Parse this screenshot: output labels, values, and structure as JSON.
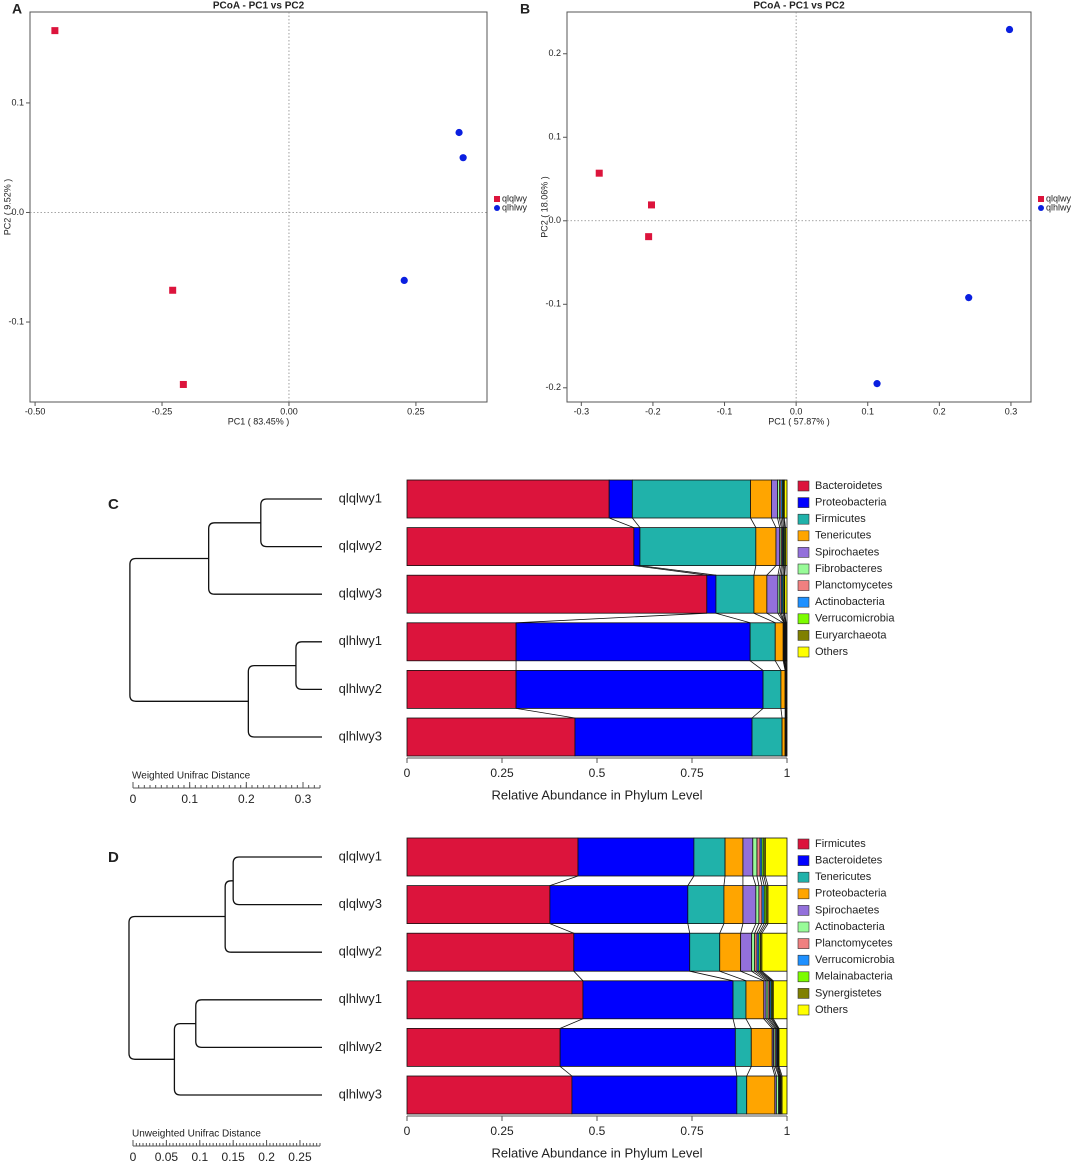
{
  "chart_data": [
    {
      "type": "scatter",
      "panel": "A",
      "title": "PCoA - PC1 vs PC2",
      "xlabel": "PC1 ( 83.45% )",
      "ylabel": "PC2 ( 9.52% )",
      "xlim": [
        -0.51,
        0.39
      ],
      "ylim": [
        -0.173,
        0.183
      ],
      "xticks": [
        {
          "value": -0.5,
          "label": "-0.50"
        },
        {
          "value": -0.25,
          "label": "-0.25"
        },
        {
          "value": 0,
          "label": "0.00"
        },
        {
          "value": 0.25,
          "label": "0.25"
        }
      ],
      "yticks": [
        0.1,
        {
          "value": 0,
          "label": "0.0"
        },
        -0.1
      ],
      "series": [
        {
          "name": "qlqlwy",
          "color": "#dc143c",
          "marker": "square",
          "x": [
            -0.461,
            -0.229,
            -0.208
          ],
          "values": [
            0.166,
            -0.071,
            -0.157
          ]
        },
        {
          "name": "qlhlwy",
          "color": "#0a1fe0",
          "marker": "circle",
          "x": [
            0.335,
            0.343,
            0.227
          ],
          "values": [
            0.073,
            0.05,
            -0.062
          ]
        }
      ]
    },
    {
      "type": "scatter",
      "panel": "B",
      "title": "PCoA - PC1 vs PC2",
      "xlabel": "PC1 ( 57.87% )",
      "ylabel": "PC2 ( 18.06% )",
      "xlim": [
        -0.32,
        0.328
      ],
      "ylim": [
        -0.217,
        0.25
      ],
      "xticks": [
        -0.3,
        -0.2,
        -0.1,
        {
          "value": 0,
          "label": "0.0"
        },
        0.1,
        0.2,
        0.3
      ],
      "yticks": [
        0.2,
        0.1,
        {
          "value": 0,
          "label": "0.0"
        },
        -0.1,
        -0.2
      ],
      "series": [
        {
          "name": "qlqlwy",
          "color": "#dc143c",
          "marker": "square",
          "x": [
            -0.275,
            -0.202,
            -0.206
          ],
          "values": [
            0.057,
            0.019,
            -0.019
          ]
        },
        {
          "name": "qlhlwy",
          "color": "#0a1fe0",
          "marker": "circle",
          "x": [
            0.298,
            0.241,
            0.113
          ],
          "values": [
            0.229,
            -0.092,
            -0.195
          ]
        }
      ]
    },
    {
      "type": "bar",
      "panel": "C",
      "orientation": "horizontal",
      "stacked": true,
      "xlabel": "Relative Abundance in Phylum Level",
      "xlim": [
        0,
        1
      ],
      "xticks": [
        0,
        0.25,
        0.5,
        0.75,
        1
      ],
      "categories": [
        "qlqlwy1",
        "qlqlwy2",
        "qlqlwy3",
        "qlhlwy1",
        "qlhlwy2",
        "qlhlwy3"
      ],
      "series": [
        {
          "name": "Bacteroidetes",
          "color": "#dc143c",
          "values": [
            0.532,
            0.597,
            0.789,
            0.287,
            0.287,
            0.442
          ]
        },
        {
          "name": "Proteobacteria",
          "color": "#0000ff",
          "values": [
            0.061,
            0.016,
            0.024,
            0.616,
            0.65,
            0.466
          ]
        },
        {
          "name": "Firmicutes",
          "color": "#20b2aa",
          "values": [
            0.311,
            0.305,
            0.1,
            0.066,
            0.047,
            0.079
          ]
        },
        {
          "name": "Tenericutes",
          "color": "#ffa500",
          "values": [
            0.055,
            0.053,
            0.034,
            0.021,
            0.011,
            0.008
          ]
        },
        {
          "name": "Spirochaetes",
          "color": "#9370db",
          "values": [
            0.016,
            0.01,
            0.029,
            0.002,
            0.001,
            0.001
          ]
        },
        {
          "name": "Fibrobacteres",
          "color": "#98fb98",
          "values": [
            0.005,
            0.004,
            0.005,
            0.001,
            0.0005,
            0.0005
          ]
        },
        {
          "name": "Planctomycetes",
          "color": "#f08080",
          "values": [
            0.004,
            0.003,
            0.004,
            0.001,
            0.0005,
            0.0005
          ]
        },
        {
          "name": "Actinobacteria",
          "color": "#1e90ff",
          "values": [
            0.004,
            0.003,
            0.004,
            0.002,
            0.001,
            0.001
          ]
        },
        {
          "name": "Verrucomicrobia",
          "color": "#7cfc00",
          "values": [
            0.003,
            0.003,
            0.003,
            0.001,
            0.0005,
            0.0005
          ]
        },
        {
          "name": "Euryarchaeota",
          "color": "#808000",
          "values": [
            0.002,
            0.002,
            0.002,
            0.001,
            0.0005,
            0.0005
          ]
        },
        {
          "name": "Others",
          "color": "#ffff00",
          "values": [
            0.007,
            0.004,
            0.006,
            0.002,
            0.001,
            0.001
          ]
        }
      ],
      "dendrogram": {
        "label": "Weighted Unifrac Distance",
        "xlim": [
          0,
          0.33
        ],
        "xticks": [
          0,
          0.1,
          0.2,
          0.3
        ],
        "merges": [
          [
            0,
            1,
            0.108
          ],
          [
            6,
            2,
            0.2
          ],
          [
            3,
            4,
            0.046
          ],
          [
            8,
            5,
            0.13
          ],
          [
            7,
            9,
            0.339
          ]
        ]
      }
    },
    {
      "type": "bar",
      "panel": "D",
      "orientation": "horizontal",
      "stacked": true,
      "xlabel": "Relative Abundance in Phylum Level",
      "xlim": [
        0,
        1
      ],
      "xticks": [
        0,
        0.25,
        0.5,
        0.75,
        1
      ],
      "categories": [
        "qlqlwy1",
        "qlqlwy3",
        "qlqlwy2",
        "qlhlwy1",
        "qlhlwy2",
        "qlhlwy3"
      ],
      "series": [
        {
          "name": "Firmicutes",
          "color": "#dc143c",
          "values": [
            0.45,
            0.376,
            0.439,
            0.463,
            0.403,
            0.434
          ]
        },
        {
          "name": "Bacteroidetes",
          "color": "#0000ff",
          "values": [
            0.305,
            0.363,
            0.305,
            0.395,
            0.461,
            0.434
          ]
        },
        {
          "name": "Tenericutes",
          "color": "#20b2aa",
          "values": [
            0.082,
            0.095,
            0.079,
            0.034,
            0.042,
            0.026
          ]
        },
        {
          "name": "Proteobacteria",
          "color": "#ffa500",
          "values": [
            0.047,
            0.05,
            0.055,
            0.047,
            0.055,
            0.074
          ]
        },
        {
          "name": "Spirochaetes",
          "color": "#9370db",
          "values": [
            0.026,
            0.034,
            0.029,
            0.006,
            0.004,
            0.004
          ]
        },
        {
          "name": "Actinobacteria",
          "color": "#98fb98",
          "values": [
            0.011,
            0.008,
            0.008,
            0.005,
            0.004,
            0.006
          ]
        },
        {
          "name": "Planctomycetes",
          "color": "#f08080",
          "values": [
            0.008,
            0.008,
            0.006,
            0.004,
            0.003,
            0.002
          ]
        },
        {
          "name": "Verrucomicrobia",
          "color": "#1e90ff",
          "values": [
            0.005,
            0.006,
            0.005,
            0.004,
            0.003,
            0.002
          ]
        },
        {
          "name": "Melainabacteria",
          "color": "#7cfc00",
          "values": [
            0.005,
            0.005,
            0.004,
            0.003,
            0.002,
            0.002
          ]
        },
        {
          "name": "Synergistetes",
          "color": "#808000",
          "values": [
            0.004,
            0.005,
            0.004,
            0.003,
            0.002,
            0.003
          ]
        },
        {
          "name": "Others",
          "color": "#ffff00",
          "values": [
            0.057,
            0.05,
            0.066,
            0.036,
            0.021,
            0.013
          ]
        }
      ],
      "dendrogram": {
        "label": "Unweighted Unifrac Distance",
        "xlim": [
          0,
          0.28
        ],
        "xticks": [
          0,
          0.05,
          0.1,
          0.15,
          0.2,
          0.25
        ],
        "merges": [
          [
            0,
            1,
            0.133
          ],
          [
            6,
            2,
            0.145
          ],
          [
            3,
            4,
            0.189
          ],
          [
            8,
            5,
            0.221
          ],
          [
            7,
            9,
            0.289
          ]
        ]
      }
    }
  ]
}
